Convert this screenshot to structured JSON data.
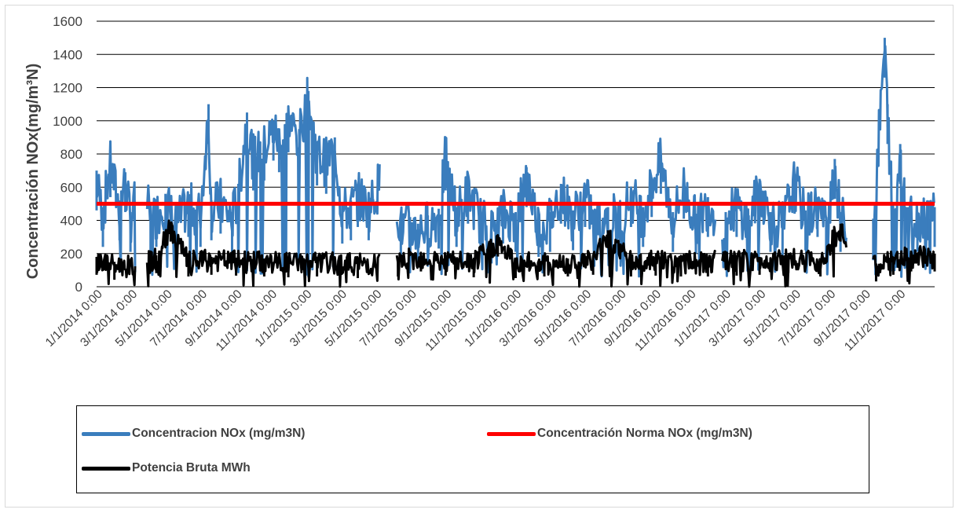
{
  "chart_data": {
    "type": "line",
    "ylabel": "Concentración NOx(mg/m³N)",
    "ylim": [
      0,
      1600
    ],
    "yticks": [
      "0",
      "200",
      "400",
      "600",
      "800",
      "1000",
      "1200",
      "1400",
      "1600"
    ],
    "grid": true,
    "legend_position": "bottom",
    "x_tick_labels": [
      "1/1/2014 0:00",
      "3/1/2014 0:00",
      "5/1/2014 0:00",
      "7/1/2014 0:00",
      "9/1/2014 0:00",
      "11/1/2014 0:00",
      "1/1/2015 0:00",
      "3/1/2015 0:00",
      "5/1/2015 0:00",
      "7/1/2015 0:00",
      "9/1/2015 0:00",
      "11/1/2015 0:00",
      "1/1/2016 0:00",
      "3/1/2016 0:00",
      "5/1/2016 0:00",
      "7/1/2016 0:00",
      "9/1/2016 0:00",
      "11/1/2016 0:00",
      "1/1/2017 0:00",
      "3/1/2017 0:00",
      "5/1/2017 0:00",
      "7/1/2017 0:00",
      "9/1/2017 0:00",
      "11/1/2017 0:00"
    ],
    "series": [
      {
        "name": "Concentracion NOx (mg/m3N)",
        "color": "#3a7dbd",
        "x": [
          "2014-01-01",
          "2014-01-12",
          "2014-01-25",
          "2014-02-10",
          "2014-02-20",
          "2014-03-01",
          "2014-03-20",
          "2014-04-05",
          "2014-04-15",
          "2014-05-01",
          "2014-05-20",
          "2014-06-10",
          "2014-07-01",
          "2014-07-15",
          "2014-07-20",
          "2014-08-05",
          "2014-08-25",
          "2014-09-05",
          "2014-09-20",
          "2014-10-01",
          "2014-10-20",
          "2014-11-05",
          "2014-11-15",
          "2014-12-01",
          "2014-12-20",
          "2015-01-05",
          "2015-01-20",
          "2015-02-05",
          "2015-02-20",
          "2015-03-05",
          "2015-03-20",
          "2015-04-01",
          "2015-04-20",
          "2015-05-10",
          "2015-05-20",
          "2015-06-01",
          "2015-06-15",
          "2015-07-01",
          "2015-07-15",
          "2015-08-01",
          "2015-08-20",
          "2015-09-01",
          "2015-09-20",
          "2015-10-10",
          "2015-11-01",
          "2015-11-20",
          "2015-12-10",
          "2016-01-01",
          "2016-01-20",
          "2016-02-10",
          "2016-03-01",
          "2016-03-20",
          "2016-04-10",
          "2016-05-01",
          "2016-05-20",
          "2016-06-10",
          "2016-07-01",
          "2016-07-20",
          "2016-08-10",
          "2016-08-25",
          "2016-09-10",
          "2016-10-01",
          "2016-10-20",
          "2016-11-10",
          "2016-12-01",
          "2017-01-01",
          "2017-01-20",
          "2017-02-10",
          "2017-03-01",
          "2017-03-20",
          "2017-04-10",
          "2017-05-01",
          "2017-05-20",
          "2017-06-10",
          "2017-06-25",
          "2017-07-10",
          "2017-07-20",
          "2017-09-15",
          "2017-10-05",
          "2017-10-10",
          "2017-10-20",
          "2017-11-01",
          "2017-11-15",
          "2017-12-01",
          "2017-12-20",
          "2017-12-31"
        ],
        "y": [
          700,
          480,
          780,
          520,
          690,
          450,
          700,
          450,
          480,
          560,
          420,
          540,
          480,
          1100,
          520,
          560,
          450,
          620,
          1050,
          820,
          880,
          1000,
          930,
          1050,
          950,
          1180,
          850,
          800,
          900,
          500,
          520,
          600,
          520,
          680,
          480,
          720,
          400,
          420,
          380,
          430,
          470,
          820,
          480,
          620,
          450,
          380,
          500,
          450,
          720,
          420,
          450,
          620,
          460,
          600,
          420,
          480,
          460,
          600,
          480,
          660,
          800,
          450,
          650,
          440,
          540,
          450,
          540,
          430,
          650,
          450,
          420,
          680,
          460,
          540,
          420,
          770,
          450,
          400,
          1500,
          1100,
          450,
          860,
          480,
          450,
          520,
          480
        ]
      },
      {
        "name": "Concentración Norma NOx (mg/m3N)",
        "color": "#ff0000",
        "x": [
          "2014-01-01",
          "2017-12-31"
        ],
        "y": [
          500,
          500
        ]
      },
      {
        "name": "Potencia Bruta MWh",
        "color": "#000000",
        "x": [
          "2014-01-01",
          "2014-02-01",
          "2014-03-15",
          "2014-04-15",
          "2014-05-10",
          "2014-06-10",
          "2014-07-20",
          "2014-09-01",
          "2014-10-20",
          "2014-12-01",
          "2015-01-20",
          "2015-03-01",
          "2015-04-01",
          "2015-06-10",
          "2015-07-20",
          "2015-09-01",
          "2015-10-20",
          "2015-12-01",
          "2016-01-01",
          "2016-02-20",
          "2016-04-01",
          "2016-05-15",
          "2016-06-10",
          "2016-07-20",
          "2016-09-01",
          "2016-10-15",
          "2016-12-01",
          "2017-01-20",
          "2017-03-01",
          "2017-04-20",
          "2017-06-15",
          "2017-07-20",
          "2017-08-10",
          "2017-09-20",
          "2017-10-20",
          "2017-11-20",
          "2017-12-31"
        ],
        "y": [
          180,
          150,
          140,
          190,
          380,
          170,
          180,
          175,
          170,
          165,
          170,
          160,
          160,
          170,
          200,
          175,
          165,
          290,
          160,
          170,
          170,
          180,
          340,
          170,
          175,
          170,
          170,
          175,
          180,
          190,
          170,
          380,
          175,
          140,
          180,
          200,
          200
        ]
      }
    ],
    "gaps": [
      [
        "2014-03-10",
        "2014-03-30"
      ],
      [
        "2015-05-10",
        "2015-06-08"
      ],
      [
        "2016-12-15",
        "2016-12-25"
      ],
      [
        "2017-08-01",
        "2017-09-14"
      ]
    ]
  },
  "legend": {
    "items": [
      {
        "label": "Concentracion NOx (mg/m3N)",
        "color": "#3a7dbd"
      },
      {
        "label": "Concentración Norma NOx (mg/m3N)",
        "color": "#ff0000"
      },
      {
        "label": "Potencia Bruta MWh",
        "color": "#000000"
      }
    ]
  }
}
